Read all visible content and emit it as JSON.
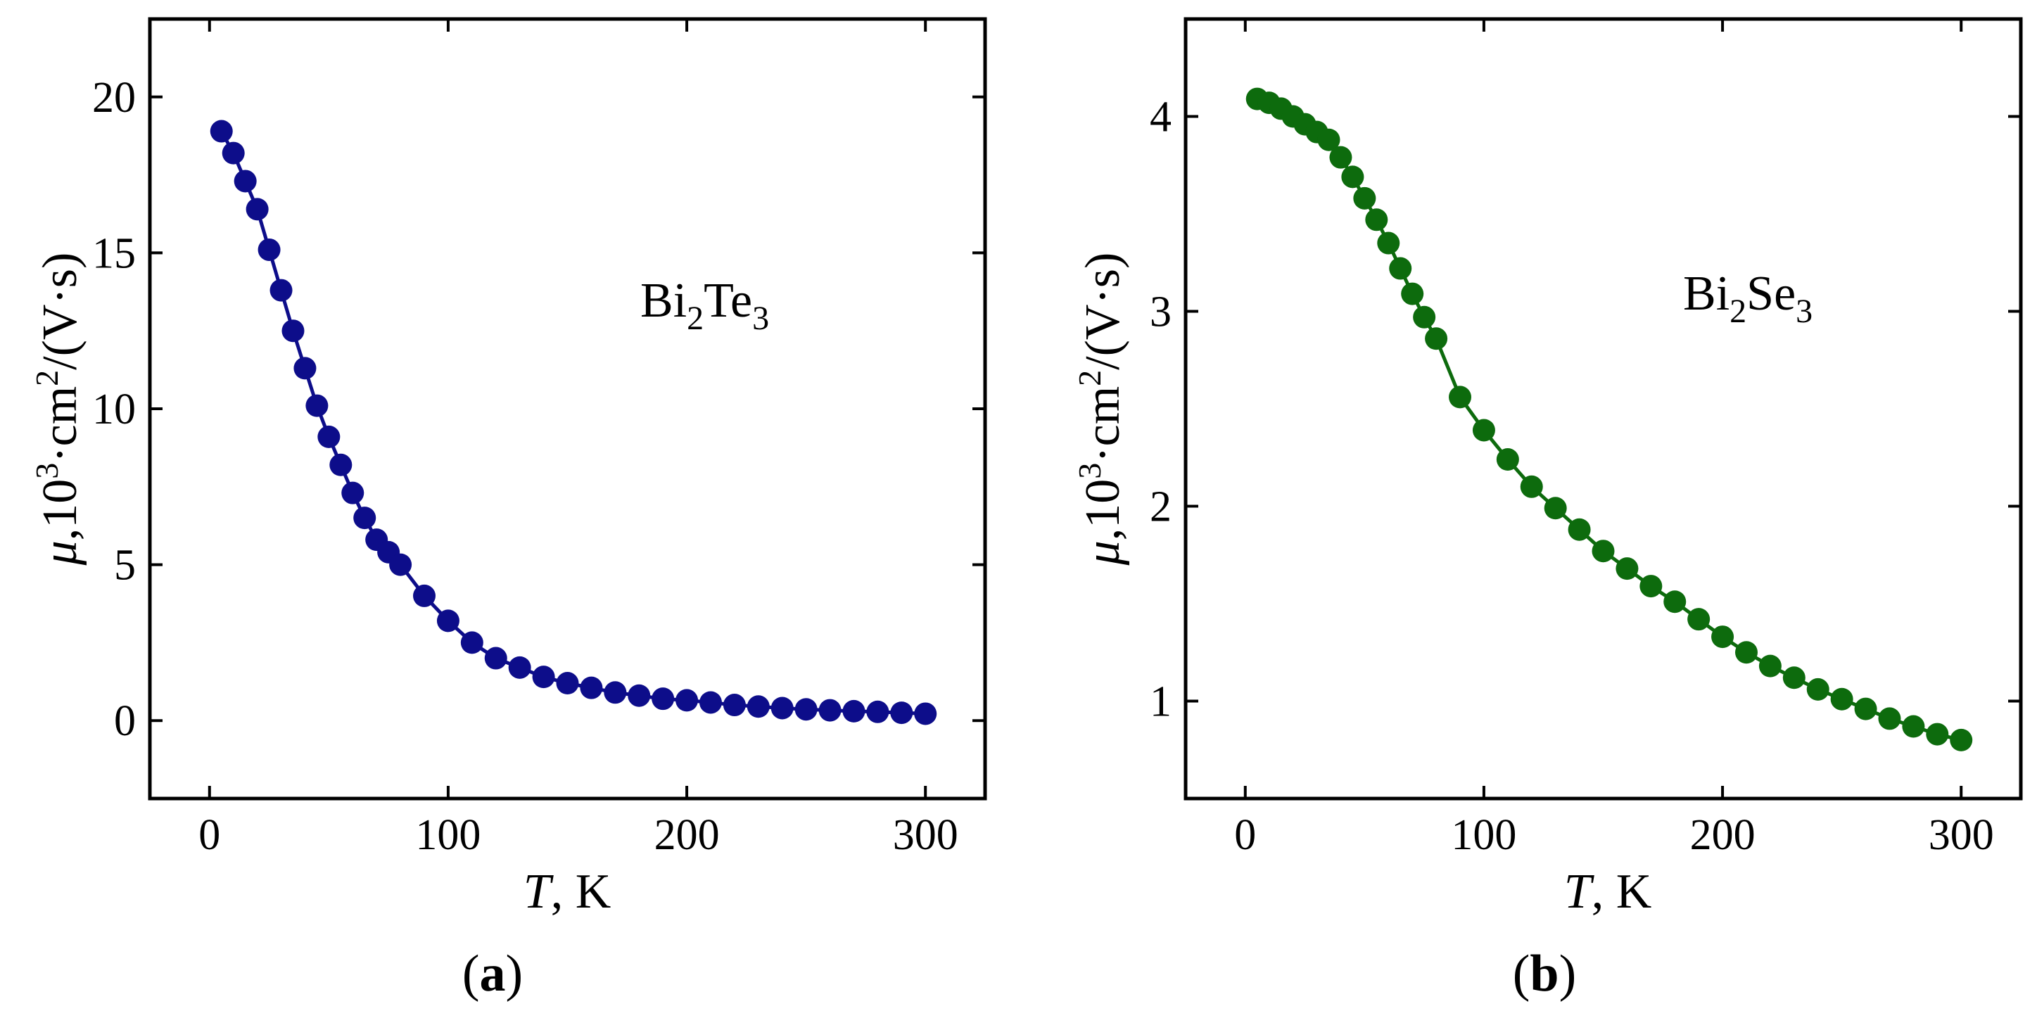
{
  "colors": {
    "a": "#0d0d8a",
    "b": "#0d6b0d"
  },
  "chart_data": [
    {
      "id": "a",
      "type": "line",
      "panel_label": "a",
      "annotation": {
        "base": "Bi",
        "sub1": "2",
        "base2": "Te",
        "sub2": "3"
      },
      "xlabel": {
        "var": "T",
        "unit": ", K"
      },
      "ylabel": {
        "var": "μ",
        "text": ",10",
        "sup1": "3",
        "text2": "·cm",
        "sup2": "2",
        "text3": "/(V·s)"
      },
      "xlim": [
        -25,
        325
      ],
      "ylim": [
        -2.5,
        22.5
      ],
      "xticks": [
        0,
        100,
        200,
        300
      ],
      "yticks": [
        0,
        5,
        10,
        15,
        20
      ],
      "xtick_labels": [
        "0",
        "100",
        "200",
        "300"
      ],
      "ytick_labels": [
        "0",
        "5",
        "10",
        "15",
        "20"
      ],
      "series": [
        {
          "name": "Bi2Te3",
          "x": [
            5,
            10,
            15,
            20,
            25,
            30,
            35,
            40,
            45,
            50,
            55,
            60,
            65,
            70,
            75,
            80,
            90,
            100,
            110,
            120,
            130,
            140,
            150,
            160,
            170,
            180,
            190,
            200,
            210,
            220,
            230,
            240,
            250,
            260,
            270,
            280,
            290,
            300
          ],
          "y": [
            18.9,
            18.2,
            17.3,
            16.4,
            15.1,
            13.8,
            12.5,
            11.3,
            10.1,
            9.1,
            8.2,
            7.3,
            6.5,
            5.8,
            5.4,
            5.0,
            4.0,
            3.2,
            2.5,
            2.0,
            1.7,
            1.4,
            1.2,
            1.05,
            0.9,
            0.8,
            0.7,
            0.65,
            0.58,
            0.5,
            0.45,
            0.4,
            0.36,
            0.33,
            0.3,
            0.28,
            0.25,
            0.22
          ]
        }
      ]
    },
    {
      "id": "b",
      "type": "line",
      "panel_label": "b",
      "annotation": {
        "base": "Bi",
        "sub1": "2",
        "base2": "Se",
        "sub2": "3"
      },
      "xlabel": {
        "var": "T",
        "unit": ", K"
      },
      "ylabel": {
        "var": "μ",
        "text": ",10",
        "sup1": "3",
        "text2": "·cm",
        "sup2": "2",
        "text3": "/(V·s)"
      },
      "xlim": [
        -25,
        325
      ],
      "ylim": [
        0.5,
        4.5
      ],
      "xticks": [
        0,
        100,
        200,
        300
      ],
      "yticks": [
        1,
        2,
        3,
        4
      ],
      "xtick_labels": [
        "0",
        "100",
        "200",
        "300"
      ],
      "ytick_labels": [
        "1",
        "2",
        "3",
        "4"
      ],
      "series": [
        {
          "name": "Bi2Se3",
          "x": [
            5,
            10,
            15,
            20,
            25,
            30,
            35,
            40,
            45,
            50,
            55,
            60,
            65,
            70,
            75,
            80,
            90,
            100,
            110,
            120,
            130,
            140,
            150,
            160,
            170,
            180,
            190,
            200,
            210,
            220,
            230,
            240,
            250,
            260,
            270,
            280,
            290,
            300
          ],
          "y": [
            4.09,
            4.07,
            4.04,
            4.0,
            3.96,
            3.92,
            3.88,
            3.79,
            3.69,
            3.58,
            3.47,
            3.35,
            3.22,
            3.09,
            2.97,
            2.86,
            2.56,
            2.39,
            2.24,
            2.1,
            1.99,
            1.88,
            1.77,
            1.68,
            1.59,
            1.51,
            1.42,
            1.33,
            1.25,
            1.18,
            1.12,
            1.06,
            1.01,
            0.96,
            0.91,
            0.87,
            0.83,
            0.8
          ]
        }
      ]
    }
  ]
}
